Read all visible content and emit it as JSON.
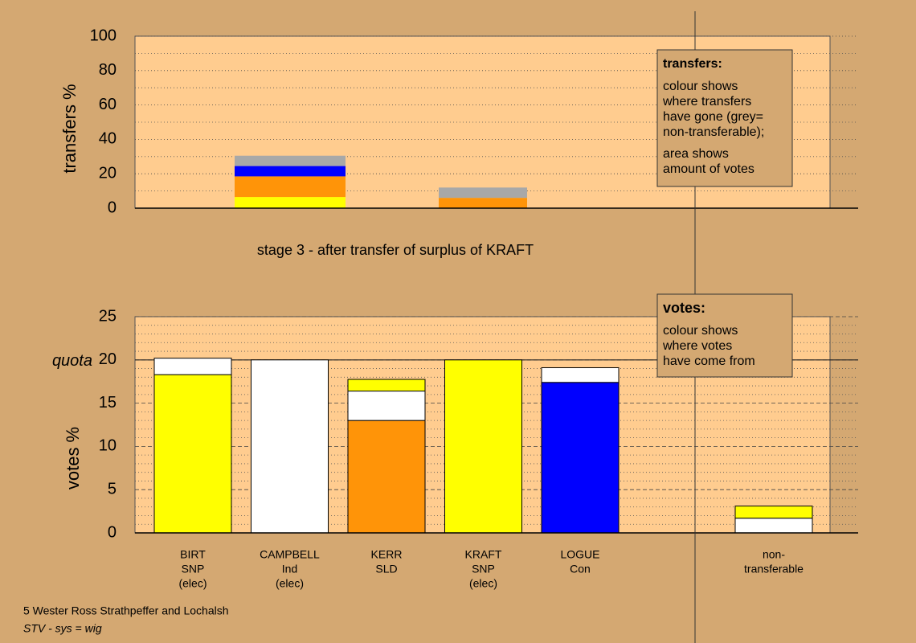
{
  "chart_data": [
    {
      "type": "stacked_bar",
      "y_label": "transfers %",
      "ylim": [
        0,
        100
      ],
      "yticks": [
        0,
        20,
        40,
        60,
        80,
        100
      ],
      "minor_yticks": [
        10,
        30,
        50,
        70,
        90
      ],
      "stacks": [
        {
          "segments": [
            {
              "color": "#ffff00",
              "value": 6.5
            },
            {
              "color": "#ff9408",
              "value": 12
            },
            {
              "color": "#0000ff",
              "value": 6
            },
            {
              "color": "#a8a8a8",
              "value": 6
            }
          ]
        },
        {
          "segments": [
            {
              "color": "#ff9408",
              "value": 6
            },
            {
              "color": "#a8a8a8",
              "value": 6
            }
          ]
        }
      ],
      "caption": "stage 3 - after transfer of surplus of KRAFT",
      "note_box": {
        "title": "transfers:",
        "paragraphs": [
          [
            "colour shows",
            "where transfers",
            "have gone (grey=",
            "non-transferable);"
          ],
          [
            "area shows",
            "amount of votes"
          ]
        ]
      }
    },
    {
      "type": "stacked_bar",
      "y_label": "votes %",
      "ylim": [
        0,
        25
      ],
      "yticks": [
        0,
        5,
        10,
        15,
        20,
        25
      ],
      "minor_yticks": [
        1,
        2,
        3,
        4,
        6,
        7,
        8,
        9,
        11,
        12,
        13,
        14,
        16,
        17,
        18,
        19,
        21,
        22,
        23,
        24
      ],
      "quota": 20,
      "quota_label": "quota",
      "categories": [
        [
          "BIRT",
          "SNP",
          "(elec)"
        ],
        [
          "CAMPBELL",
          "Ind",
          "(elec)"
        ],
        [
          "KERR",
          "SLD"
        ],
        [
          "KRAFT",
          "SNP",
          "(elec)"
        ],
        [
          "LOGUE",
          "Con"
        ],
        null,
        [
          "non-",
          "transferable"
        ]
      ],
      "stacks": [
        {
          "segments": [
            {
              "color": "#ffff00",
              "value": 18.3
            },
            {
              "color": "#ffffff",
              "value": 1.9
            }
          ]
        },
        {
          "segments": [
            {
              "color": "#ffffff",
              "value": 20
            }
          ]
        },
        {
          "segments": [
            {
              "color": "#ff9408",
              "value": 13
            },
            {
              "color": "#ffffff",
              "value": 3.4
            },
            {
              "color": "#ffff00",
              "value": 1.35
            }
          ]
        },
        {
          "segments": [
            {
              "color": "#ffff00",
              "value": 20
            }
          ]
        },
        {
          "segments": [
            {
              "color": "#0000ff",
              "value": 17.4
            },
            {
              "color": "#ffffff",
              "value": 1.7
            }
          ]
        },
        {
          "segments": []
        },
        {
          "segments": [
            {
              "color": "#ffffff",
              "value": 1.7
            },
            {
              "color": "#ffff00",
              "value": 1.4
            }
          ]
        }
      ],
      "note_box": {
        "title": "votes:",
        "paragraphs": [
          [
            "colour shows",
            "where votes",
            "have come from"
          ]
        ]
      }
    }
  ],
  "footer": [
    "5 Wester Ross Strathpeffer and Lochalsh",
    "STV - sys = wig"
  ]
}
